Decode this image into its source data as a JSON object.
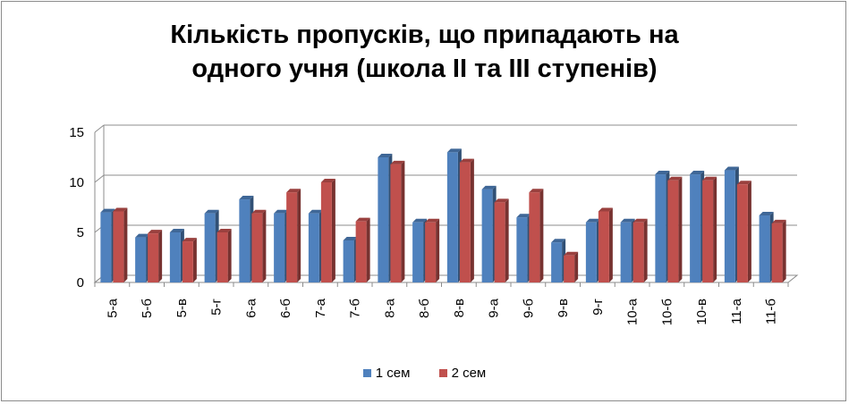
{
  "chart_data": {
    "type": "bar",
    "title_lines": [
      "Кількість пропусків, що припадають на",
      "одного учня (школа ІІ та ІІІ ступенів)"
    ],
    "categories": [
      "5-а",
      "5-б",
      "5-в",
      "5-г",
      "6-а",
      "6-б",
      "7-а",
      "7-б",
      "8-а",
      "8-б",
      "8-в",
      "9-а",
      "9-б",
      "9-в",
      "9-г",
      "10-а",
      "10-б",
      "10-в",
      "11-а",
      "11-б"
    ],
    "series": [
      {
        "name": "1 сем",
        "color": "#4f81bd",
        "values": [
          7.0,
          4.5,
          5.0,
          6.9,
          8.3,
          6.9,
          6.9,
          4.2,
          12.5,
          6.0,
          13.0,
          9.3,
          6.5,
          4.0,
          6.0,
          6.0,
          10.8,
          10.8,
          11.2,
          6.7
        ]
      },
      {
        "name": "2 сем",
        "color": "#c0504d",
        "values": [
          7.1,
          4.9,
          4.1,
          5.0,
          6.9,
          9.0,
          10.0,
          6.1,
          11.8,
          6.0,
          12.0,
          8.0,
          9.0,
          2.7,
          7.1,
          6.0,
          10.2,
          10.2,
          9.8,
          5.9
        ]
      }
    ],
    "ylim": [
      0,
      15
    ],
    "yticks": [
      0,
      5,
      10,
      15
    ],
    "grid": true,
    "legend_position": "bottom"
  }
}
